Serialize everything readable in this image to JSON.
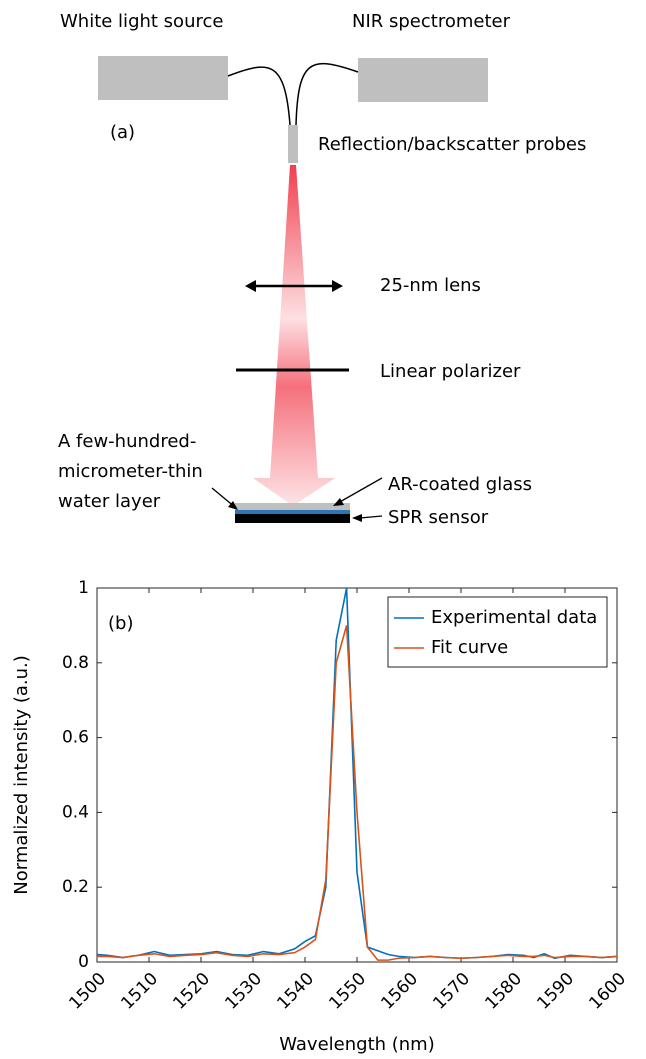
{
  "diagram": {
    "panel_label": "(a)",
    "white_light_source": "White light source",
    "nir_spectrometer": "NIR spectrometer",
    "probes": "Reflection/backscatter probes",
    "lens": "25-nm lens",
    "polarizer": "Linear polarizer",
    "water_layer": [
      "A few-hundred-",
      "micrometer-thin",
      "water layer"
    ],
    "ar_glass": "AR-coated glass",
    "spr_sensor": "SPR sensor"
  },
  "chart_data": {
    "type": "line",
    "annotation": "(b)",
    "xlabel": "Wavelength (nm)",
    "ylabel": "Normalized intensity (a.u.)",
    "x": [
      1500,
      1502,
      1505,
      1508,
      1511,
      1514,
      1517,
      1520,
      1523,
      1526,
      1529,
      1532,
      1535,
      1538,
      1540,
      1542,
      1544,
      1546,
      1548,
      1550,
      1552,
      1554,
      1556,
      1558,
      1561,
      1564,
      1567,
      1570,
      1573,
      1576,
      1579,
      1582,
      1584,
      1586,
      1588,
      1591,
      1594,
      1597,
      1600
    ],
    "series": [
      {
        "name": "Experimental data",
        "color": "#0072bd",
        "values": [
          0.02,
          0.018,
          0.012,
          0.018,
          0.028,
          0.018,
          0.02,
          0.022,
          0.028,
          0.02,
          0.018,
          0.028,
          0.022,
          0.035,
          0.055,
          0.07,
          0.2,
          0.86,
          1.0,
          0.24,
          0.04,
          0.03,
          0.02,
          0.015,
          0.012,
          0.015,
          0.012,
          0.01,
          0.012,
          0.015,
          0.02,
          0.018,
          0.012,
          0.022,
          0.01,
          0.018,
          0.015,
          0.012,
          0.015
        ]
      },
      {
        "name": "Fit curve",
        "color": "#d95319",
        "values": [
          0.015,
          0.015,
          0.012,
          0.018,
          0.022,
          0.015,
          0.018,
          0.02,
          0.025,
          0.018,
          0.015,
          0.022,
          0.02,
          0.025,
          0.04,
          0.06,
          0.22,
          0.8,
          0.9,
          0.4,
          0.04,
          0.005,
          0.005,
          0.01,
          0.012,
          0.015,
          0.012,
          0.01,
          0.012,
          0.015,
          0.018,
          0.015,
          0.015,
          0.018,
          0.012,
          0.015,
          0.015,
          0.012,
          0.015
        ]
      }
    ],
    "xlim": [
      1500,
      1600
    ],
    "xticks": [
      1500,
      1510,
      1520,
      1530,
      1540,
      1550,
      1560,
      1570,
      1580,
      1590,
      1600
    ],
    "ylim": [
      0,
      1
    ],
    "yticks": [
      0,
      0.2,
      0.4,
      0.6,
      0.8,
      1
    ],
    "legend": "upper right"
  }
}
